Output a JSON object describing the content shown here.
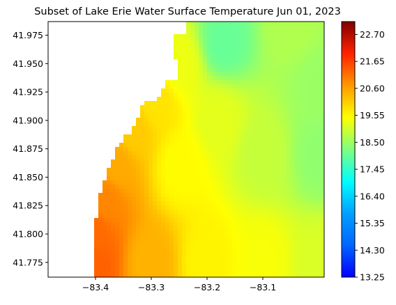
{
  "chart_data": {
    "type": "heatmap",
    "title": "Subset of Lake Erie Water Surface Temperature Jun 01, 2023",
    "xlabel": "",
    "ylabel": "",
    "xlim": [
      -83.485,
      -82.99
    ],
    "ylim": [
      41.762,
      41.987
    ],
    "x_ticks": [
      {
        "value": -83.4,
        "label": "−83.4"
      },
      {
        "value": -83.3,
        "label": "−83.3"
      },
      {
        "value": -83.2,
        "label": "−83.2"
      },
      {
        "value": -83.1,
        "label": "−83.1"
      }
    ],
    "y_ticks": [
      {
        "value": 41.775,
        "label": "41.775"
      },
      {
        "value": 41.8,
        "label": "41.800"
      },
      {
        "value": 41.825,
        "label": "41.825"
      },
      {
        "value": 41.85,
        "label": "41.850"
      },
      {
        "value": 41.875,
        "label": "41.875"
      },
      {
        "value": 41.9,
        "label": "41.900"
      },
      {
        "value": 41.925,
        "label": "41.925"
      },
      {
        "value": 41.95,
        "label": "41.950"
      },
      {
        "value": 41.975,
        "label": "41.975"
      }
    ],
    "colormap": "jet",
    "color_range": [
      13.25,
      23.2
    ],
    "colorbar_ticks": [
      13.25,
      14.3,
      15.35,
      16.4,
      17.45,
      18.5,
      19.55,
      20.6,
      21.65,
      22.7
    ],
    "colorbar_tick_labels": [
      "13.25",
      "14.30",
      "15.35",
      "16.40",
      "17.45",
      "18.50",
      "19.55",
      "20.60",
      "21.65",
      "22.70"
    ],
    "grid": false,
    "temperature_samples": [
      {
        "lon": -83.4,
        "lat": 41.775,
        "temp": 21.3
      },
      {
        "lon": -83.4,
        "lat": 41.8,
        "temp": 21.2
      },
      {
        "lon": -83.38,
        "lat": 41.83,
        "temp": 20.9
      },
      {
        "lon": -83.36,
        "lat": 41.86,
        "temp": 20.5
      },
      {
        "lon": -83.33,
        "lat": 41.89,
        "temp": 20.1
      },
      {
        "lon": -83.29,
        "lat": 41.915,
        "temp": 19.8
      },
      {
        "lon": -83.25,
        "lat": 41.95,
        "temp": 19.3
      },
      {
        "lon": -83.3,
        "lat": 41.775,
        "temp": 20.4
      },
      {
        "lon": -83.2,
        "lat": 41.775,
        "temp": 19.6
      },
      {
        "lon": -83.1,
        "lat": 41.775,
        "temp": 19.4
      },
      {
        "lon": -83.0,
        "lat": 41.775,
        "temp": 19.1
      },
      {
        "lon": -83.25,
        "lat": 41.86,
        "temp": 19.5
      },
      {
        "lon": -83.18,
        "lat": 41.9,
        "temp": 19.2
      },
      {
        "lon": -83.1,
        "lat": 41.87,
        "temp": 18.9
      },
      {
        "lon": -83.0,
        "lat": 41.87,
        "temp": 18.4
      },
      {
        "lon": -83.0,
        "lat": 41.93,
        "temp": 18.5
      },
      {
        "lon": -83.17,
        "lat": 41.97,
        "temp": 18.0
      },
      {
        "lon": -83.05,
        "lat": 41.985,
        "temp": 18.7
      }
    ]
  },
  "colors": {
    "nodata_background": "#ffffff",
    "axes_frame": "#000000"
  }
}
